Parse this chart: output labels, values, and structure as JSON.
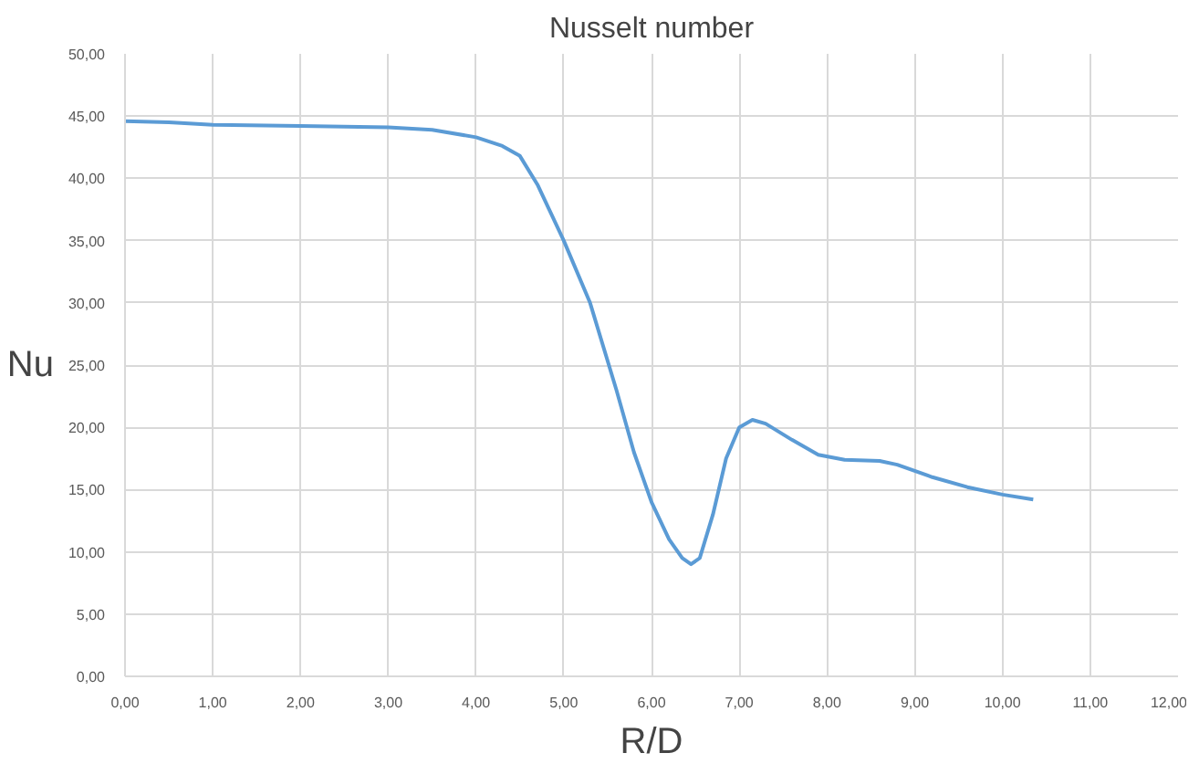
{
  "chart_data": {
    "type": "line",
    "title": "Nusselt number",
    "xlabel": "R/D",
    "ylabel": "Nu",
    "xlim": [
      0,
      12
    ],
    "ylim": [
      0,
      50
    ],
    "xticks": [
      {
        "value": 0,
        "label": "0,00"
      },
      {
        "value": 1,
        "label": "1,00"
      },
      {
        "value": 2,
        "label": "2,00"
      },
      {
        "value": 3,
        "label": "3,00"
      },
      {
        "value": 4,
        "label": "4,00"
      },
      {
        "value": 5,
        "label": "5,00"
      },
      {
        "value": 6,
        "label": "6,00"
      },
      {
        "value": 7,
        "label": "7,00"
      },
      {
        "value": 8,
        "label": "8,00"
      },
      {
        "value": 9,
        "label": "9,00"
      },
      {
        "value": 10,
        "label": "10,00"
      },
      {
        "value": 11,
        "label": "11,00"
      },
      {
        "value": 12,
        "label": "12,00"
      }
    ],
    "yticks": [
      {
        "value": 0,
        "label": "0,00"
      },
      {
        "value": 5,
        "label": "5,00"
      },
      {
        "value": 10,
        "label": "10,00"
      },
      {
        "value": 15,
        "label": "15,00"
      },
      {
        "value": 20,
        "label": "20,00"
      },
      {
        "value": 25,
        "label": "25,00"
      },
      {
        "value": 30,
        "label": "30,00"
      },
      {
        "value": 35,
        "label": "35,00"
      },
      {
        "value": 40,
        "label": "40,00"
      },
      {
        "value": 45,
        "label": "45,00"
      },
      {
        "value": 50,
        "label": "50,00"
      }
    ],
    "grid": true,
    "marker": "none",
    "line_style": "solid",
    "series": [
      {
        "color": "#5b9bd5",
        "x": [
          0,
          0.5,
          1,
          2,
          3,
          3.5,
          4,
          4.3,
          4.5,
          4.7,
          5,
          5.3,
          5.6,
          5.8,
          6,
          6.2,
          6.35,
          6.45,
          6.55,
          6.7,
          6.85,
          7,
          7.15,
          7.3,
          7.6,
          7.9,
          8.2,
          8.6,
          8.8,
          9.2,
          9.6,
          10,
          10.35
        ],
        "values": [
          44.6,
          44.5,
          44.3,
          44.2,
          44.1,
          43.9,
          43.3,
          42.6,
          41.8,
          39.5,
          35,
          30,
          23,
          18,
          14,
          11,
          9.5,
          9,
          9.5,
          13,
          17.5,
          20,
          20.6,
          20.3,
          19,
          17.8,
          17.4,
          17.3,
          17,
          16,
          15.2,
          14.6,
          14.2
        ]
      }
    ]
  }
}
